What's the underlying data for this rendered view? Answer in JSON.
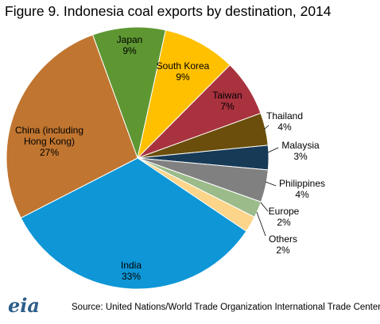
{
  "chart_data": {
    "type": "pie",
    "title": "Figure 9. Indonesia coal exports by destination, 2014",
    "categories": [
      "Japan",
      "South Korea",
      "Taiwan",
      "Thailand",
      "Malaysia",
      "Philippines",
      "Europe",
      "Others",
      "India",
      "China (including Hong Kong)"
    ],
    "values": [
      9,
      9,
      7,
      4,
      3,
      4,
      2,
      2,
      33,
      27
    ],
    "value_labels": [
      "9%",
      "9%",
      "7%",
      "4%",
      "3%",
      "4%",
      "2%",
      "2%",
      "33%",
      "27%"
    ],
    "colors": [
      "#5e9732",
      "#ffc000",
      "#a8323e",
      "#6b4e0c",
      "#173a57",
      "#808080",
      "#9bbb8b",
      "#fcd48a",
      "#0e96d6",
      "#c07530"
    ],
    "source": "Source: United Nations/World Trade Organization International Trade Center",
    "logo": "eia"
  }
}
